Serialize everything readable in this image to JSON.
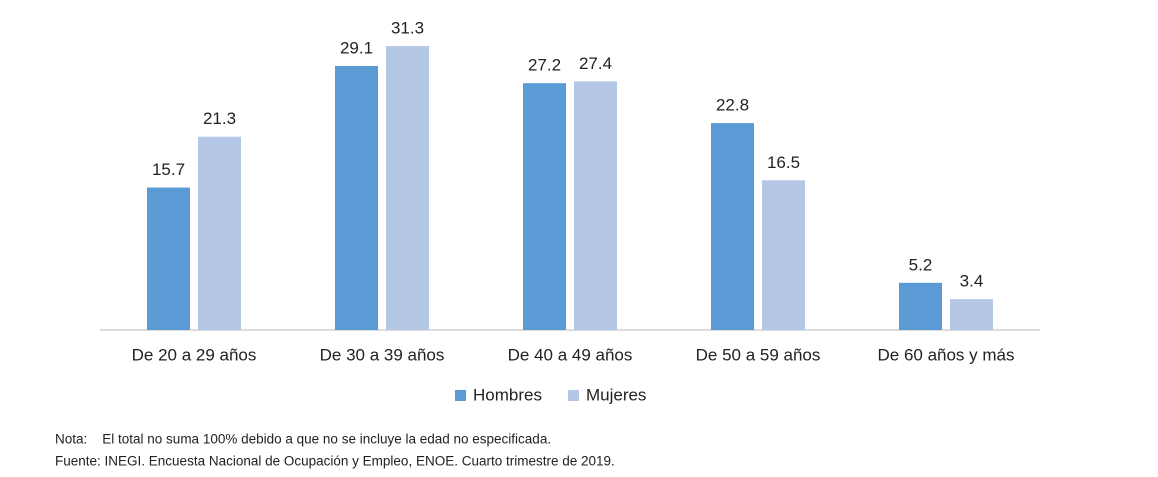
{
  "chart_data": {
    "type": "bar",
    "categories": [
      "De 20 a 29 años",
      "De 30 a 39 años",
      "De 40 a 49 años",
      "De 50 a 59 años",
      "De 60 años y más"
    ],
    "series": [
      {
        "name": "Hombres",
        "color": "#5b9bd5",
        "values": [
          15.7,
          29.1,
          27.2,
          22.8,
          5.2
        ]
      },
      {
        "name": "Mujeres",
        "color": "#b4c7e7",
        "values": [
          21.3,
          31.3,
          27.4,
          16.5,
          3.4
        ]
      }
    ],
    "legend": "bottom",
    "notes": [
      "Nota:    El total no suma 100% debido a que no se incluye la edad no especificada.",
      "Fuente: INEGI. Encuesta Nacional de Ocupación y Empleo, ENOE. Cuarto trimestre de 2019."
    ]
  }
}
